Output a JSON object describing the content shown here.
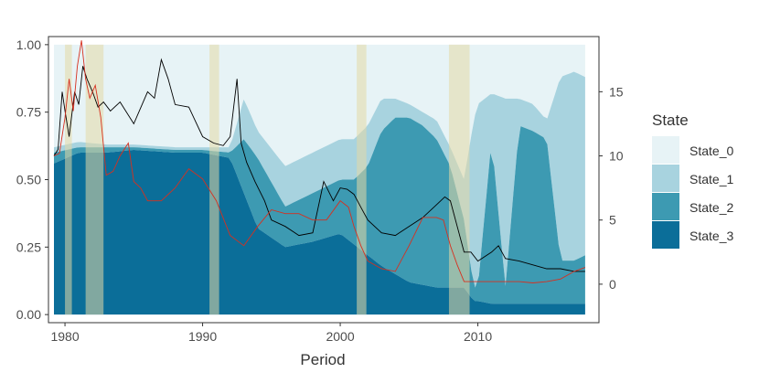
{
  "chart_data": {
    "type": "area",
    "xlabel": "Period",
    "x_ticks": [
      "1980",
      "1990",
      "2000",
      "2010"
    ],
    "x_range": [
      1978.8,
      2018.8
    ],
    "y_left_ticks": [
      "0.00",
      "0.25",
      "0.50",
      "0.75",
      "1.00"
    ],
    "y_left_range": [
      -0.03,
      1.03
    ],
    "y_right_ticks": [
      "0",
      "5",
      "10",
      "15"
    ],
    "y_right_range": [
      -3.0,
      19.3
    ],
    "legend_title": "State",
    "legend_position": "right",
    "grid": false,
    "colors": {
      "State_0": "#e7f3f6",
      "State_1": "#a8d3df",
      "State_2": "#3d9ab2",
      "State_3": "#0b6e99",
      "recession": "#e3d9a5",
      "black_line": "#000000",
      "red_line": "#d7301f"
    },
    "series": [
      {
        "name": "State_0"
      },
      {
        "name": "State_1"
      },
      {
        "name": "State_2"
      },
      {
        "name": "State_3"
      }
    ],
    "stack_boundaries": {
      "years": [
        1979.2,
        1981,
        1983,
        1985,
        1988,
        1990,
        1992,
        1993,
        1994,
        1996,
        1998,
        2000,
        2001,
        2002,
        2003,
        2004,
        2005,
        2006,
        2007,
        2008,
        2009,
        2009.7,
        2010,
        2011,
        2012,
        2013,
        2014,
        2015,
        2016,
        2017,
        2017.8
      ],
      "state3_top": [
        0.56,
        0.6,
        0.6,
        0.61,
        0.6,
        0.6,
        0.58,
        0.45,
        0.32,
        0.25,
        0.27,
        0.3,
        0.26,
        0.22,
        0.18,
        0.15,
        0.12,
        0.11,
        0.1,
        0.1,
        0.1,
        0.05,
        0.05,
        0.04,
        0.04,
        0.04,
        0.04,
        0.04,
        0.04,
        0.04,
        0.04
      ],
      "state2_top": [
        0.6,
        0.62,
        0.62,
        0.62,
        0.61,
        0.61,
        0.6,
        0.65,
        0.58,
        0.4,
        0.45,
        0.5,
        0.5,
        0.55,
        0.68,
        0.73,
        0.73,
        0.7,
        0.65,
        0.55,
        0.35,
        0.1,
        0.1,
        0.65,
        0.1,
        0.7,
        0.68,
        0.65,
        0.2,
        0.2,
        0.22
      ],
      "state1_top": [
        0.62,
        0.64,
        0.63,
        0.63,
        0.62,
        0.62,
        0.62,
        0.8,
        0.68,
        0.55,
        0.6,
        0.65,
        0.65,
        0.7,
        0.8,
        0.8,
        0.78,
        0.75,
        0.72,
        0.62,
        0.5,
        0.72,
        0.78,
        0.82,
        0.8,
        0.8,
        0.78,
        0.72,
        0.88,
        0.9,
        0.88
      ]
    },
    "recession_periods": [
      [
        1980.0,
        1980.5
      ],
      [
        1981.5,
        1982.8
      ],
      [
        1990.5,
        1991.2
      ],
      [
        2001.2,
        2001.9
      ],
      [
        2007.9,
        2009.4
      ]
    ],
    "line_black": {
      "x": [
        1979.2,
        1979.5,
        1979.8,
        1980.0,
        1980.3,
        1980.7,
        1981.0,
        1981.3,
        1981.6,
        1982.0,
        1982.4,
        1982.8,
        1983.3,
        1984.0,
        1985.0,
        1986.0,
        1986.5,
        1987.0,
        1987.5,
        1988.0,
        1989.0,
        1990.0,
        1990.8,
        1991.5,
        1992.0,
        1992.5,
        1992.8,
        1993.2,
        1993.8,
        1994.5,
        1995.0,
        1996.0,
        1997.0,
        1998.0,
        1998.8,
        1999.5,
        2000.0,
        2000.5,
        2001.0,
        2001.5,
        2002.0,
        2003.0,
        2004.0,
        2005.0,
        2006.0,
        2007.0,
        2007.6,
        2008.0,
        2008.5,
        2009.0,
        2009.5,
        2010.0,
        2011.0,
        2011.5,
        2012.0,
        2013.0,
        2014.0,
        2015.0,
        2016.0,
        2017.0,
        2017.8
      ],
      "y": [
        10.0,
        10.5,
        15.0,
        13.5,
        11.5,
        15.0,
        14.0,
        17.0,
        16.0,
        15.0,
        13.8,
        14.2,
        13.5,
        14.2,
        12.5,
        15.0,
        14.5,
        17.5,
        16.0,
        14.0,
        13.8,
        11.5,
        11.0,
        10.8,
        11.5,
        16.0,
        11.0,
        9.5,
        8.0,
        6.5,
        5.0,
        4.5,
        3.8,
        4.0,
        8.0,
        6.5,
        7.5,
        7.4,
        7.0,
        6.0,
        5.0,
        4.0,
        3.8,
        4.5,
        5.2,
        6.2,
        6.8,
        6.5,
        4.5,
        2.5,
        2.5,
        1.8,
        2.5,
        3.0,
        2.0,
        1.8,
        1.5,
        1.2,
        1.2,
        1.0,
        1.0
      ]
    },
    "line_red": {
      "x": [
        1979.2,
        1979.6,
        1980.0,
        1980.3,
        1980.6,
        1980.9,
        1981.2,
        1981.5,
        1981.8,
        1982.2,
        1982.6,
        1983.0,
        1983.5,
        1984.0,
        1984.6,
        1985.0,
        1985.5,
        1986.0,
        1987.0,
        1988.0,
        1989.0,
        1990.0,
        1991.0,
        1992.0,
        1993.0,
        1994.0,
        1995.0,
        1996.0,
        1997.0,
        1998.0,
        1999.0,
        2000.0,
        2000.6,
        2001.0,
        2001.5,
        2002.0,
        2003.0,
        2004.0,
        2005.0,
        2006.0,
        2007.0,
        2007.5,
        2008.0,
        2008.5,
        2009.0,
        2010.0,
        2011.0,
        2012.0,
        2013.0,
        2014.0,
        2015.0,
        2016.0,
        2017.0,
        2017.8
      ],
      "y": [
        10.0,
        10.2,
        13.0,
        16.0,
        13.5,
        17.0,
        19.0,
        16.0,
        14.5,
        15.5,
        13.0,
        8.5,
        8.8,
        10.0,
        11.0,
        8.0,
        7.5,
        6.5,
        6.5,
        7.5,
        9.0,
        8.2,
        6.5,
        3.8,
        3.0,
        4.5,
        5.8,
        5.5,
        5.5,
        5.0,
        5.0,
        6.5,
        6.0,
        4.5,
        3.0,
        1.8,
        1.2,
        1.0,
        3.0,
        5.2,
        5.2,
        5.0,
        3.0,
        1.5,
        0.2,
        0.2,
        0.2,
        0.2,
        0.2,
        0.1,
        0.2,
        0.4,
        1.0,
        1.3
      ]
    }
  }
}
